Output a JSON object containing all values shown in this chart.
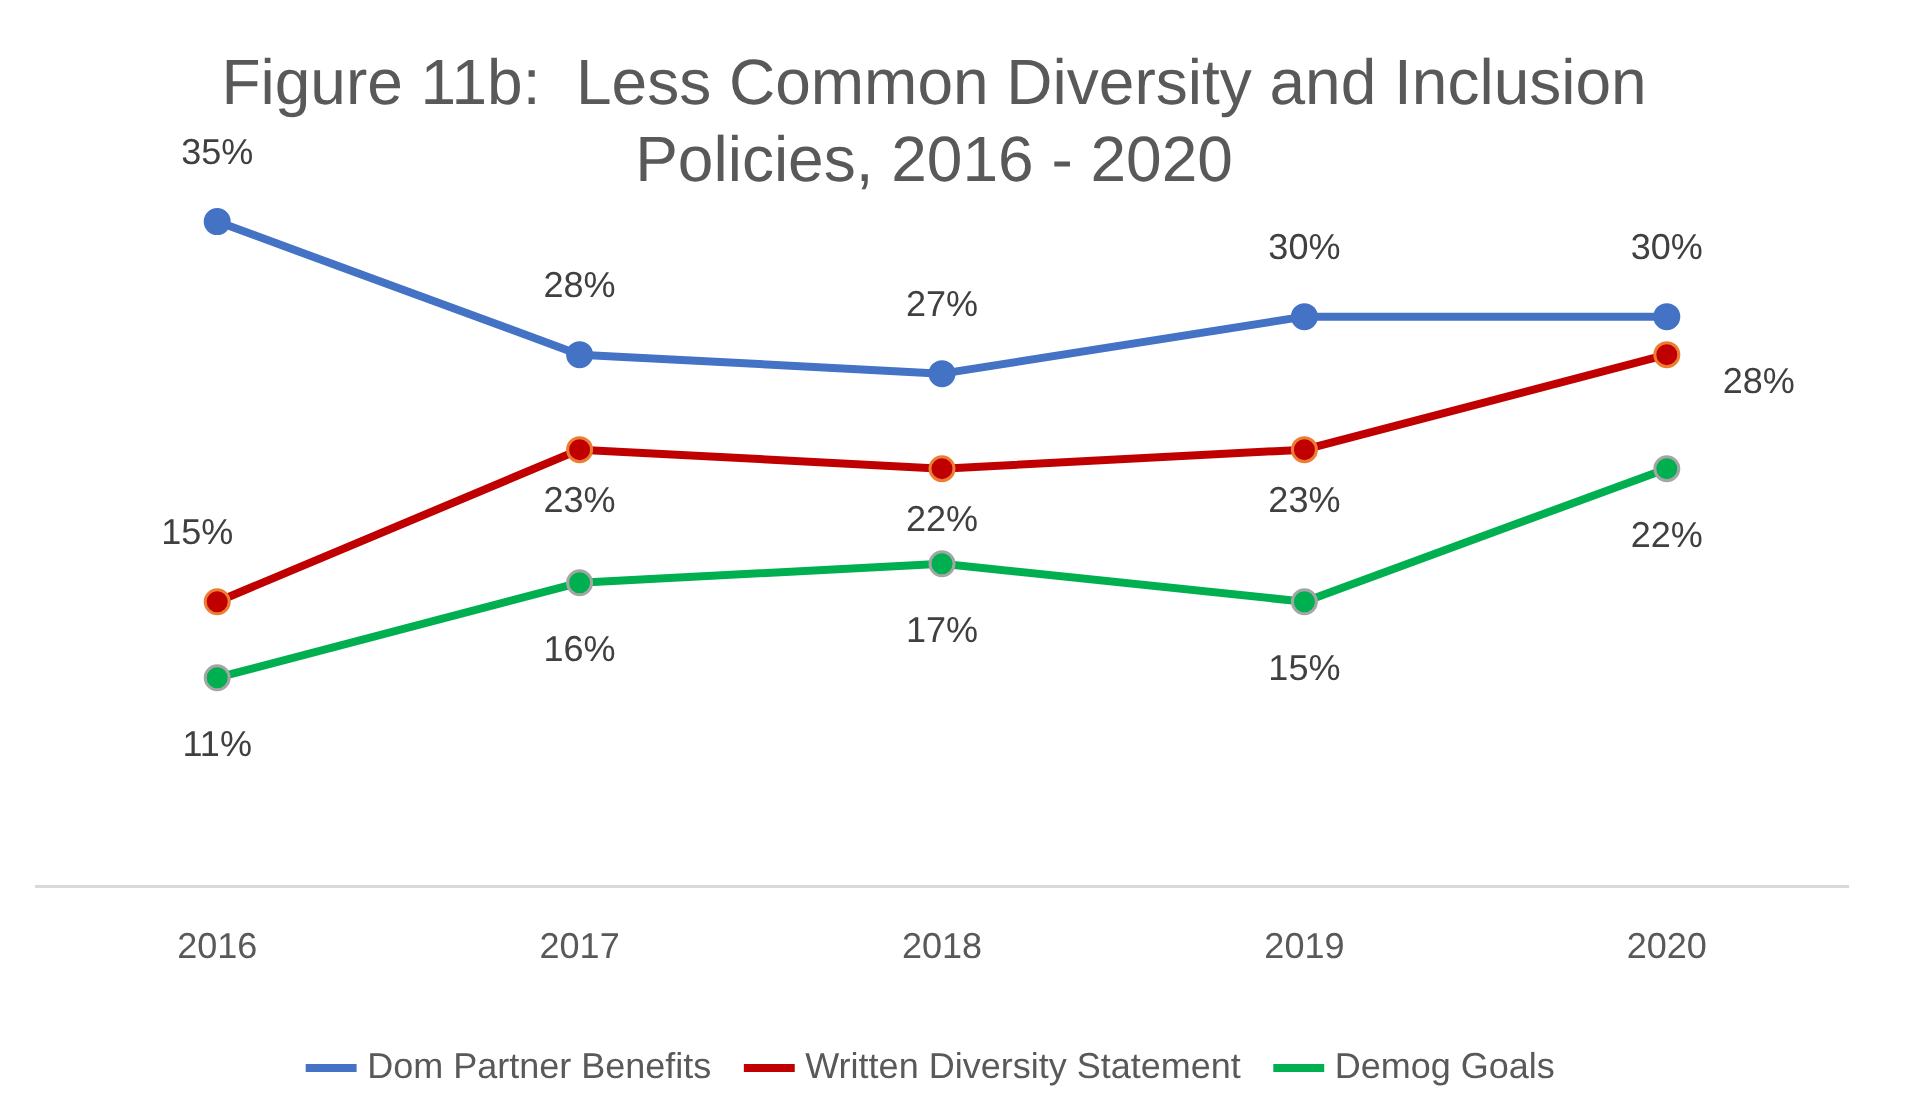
{
  "chart_data": {
    "type": "line",
    "title": "Figure 11b:  Less Common Diversity and Inclusion Policies, 2016 - 2020",
    "categories": [
      "2016",
      "2017",
      "2018",
      "2019",
      "2020"
    ],
    "tick_labels": "x",
    "grid": false,
    "legend": "bottom",
    "marker": "circle",
    "line_style": "solid",
    "series": [
      {
        "name": "Dom Partner Benefits",
        "color": "#4472c4",
        "values": [
          35,
          28,
          27,
          30,
          30
        ],
        "value_labels": [
          "35%",
          "28%",
          "27%",
          "30%",
          "30%"
        ]
      },
      {
        "name": "Written Diversity Statement",
        "color": "#c00000",
        "values": [
          15,
          23,
          22,
          23,
          28
        ],
        "value_labels": [
          "15%",
          "23%",
          "22%",
          "23%",
          "28%"
        ]
      },
      {
        "name": "Demog Goals",
        "color": "#00b050",
        "values": [
          11,
          16,
          17,
          15,
          22
        ],
        "value_labels": [
          "11%",
          "16%",
          "17%",
          "15%",
          "22%"
        ]
      }
    ]
  }
}
